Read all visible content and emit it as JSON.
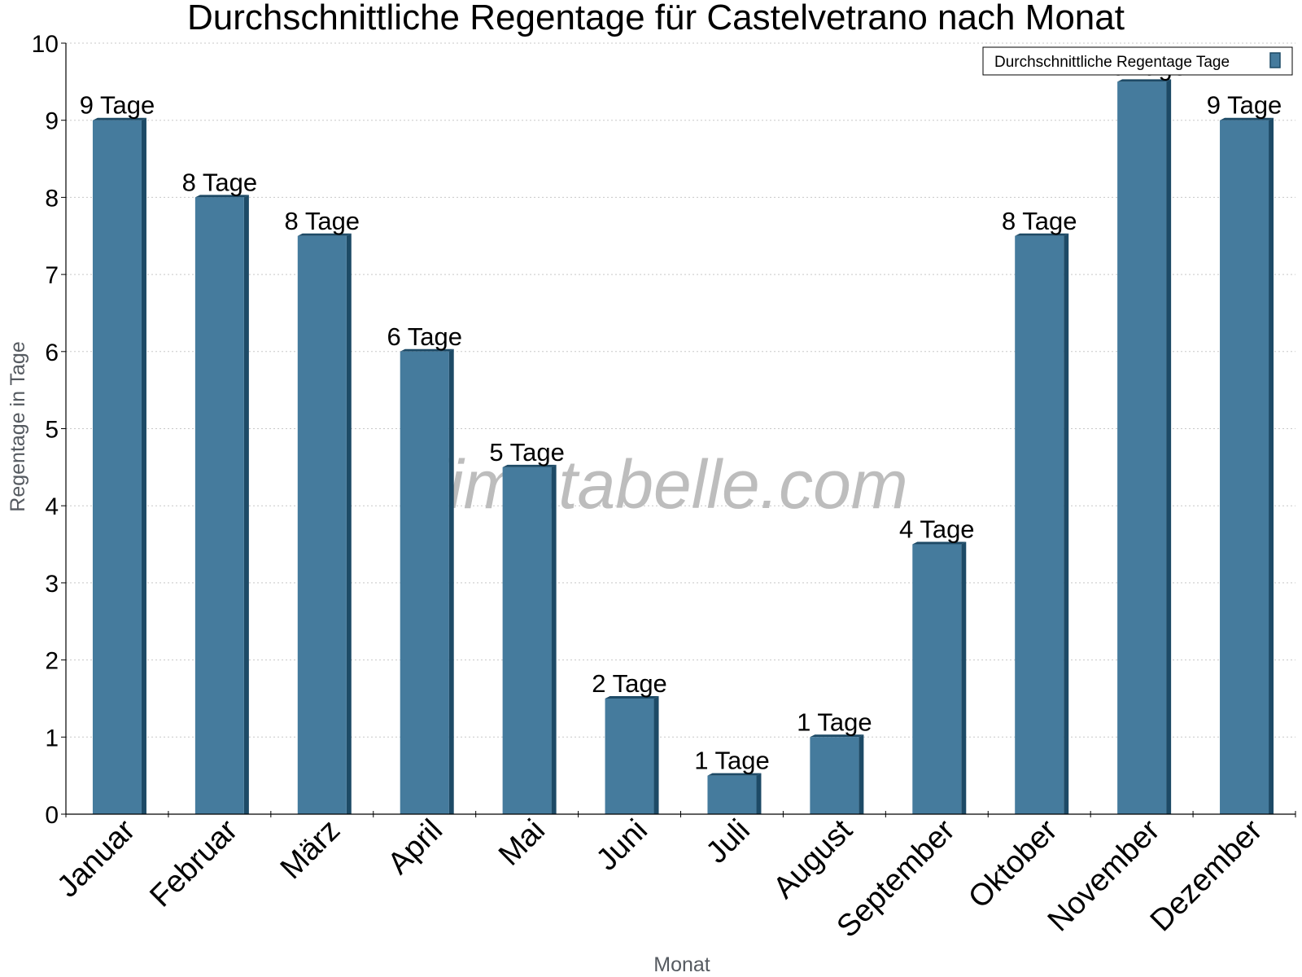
{
  "chart_data": {
    "type": "bar",
    "title": "Durchschnittliche Regentage für Castelvetrano nach Monat",
    "xlabel": "Monat",
    "ylabel": "Regentage in Tage",
    "ylim": [
      0,
      10
    ],
    "yticks": [
      "0",
      "1",
      "2",
      "3",
      "4",
      "5",
      "6",
      "7",
      "8",
      "9",
      "10"
    ],
    "grid": true,
    "legend": {
      "position": "top-right",
      "entries": [
        "Durchschnittliche Regentage Tage"
      ]
    },
    "categories": [
      "Januar",
      "Februar",
      "März",
      "April",
      "Mai",
      "Juni",
      "Juli",
      "August",
      "September",
      "Oktober",
      "November",
      "Dezember"
    ],
    "series": [
      {
        "name": "Durchschnittliche Regentage Tage",
        "color": "#457b9d",
        "values": [
          9,
          8,
          7.5,
          6,
          4.5,
          1.5,
          0.5,
          1,
          3.5,
          7.5,
          9.5,
          9
        ],
        "labels": [
          "9 Tage",
          "8 Tage",
          "8 Tage",
          "6 Tage",
          "5 Tage",
          "2 Tage",
          "1 Tage",
          "1 Tage",
          "4 Tage",
          "8 Tage",
          "10 Tage",
          "9 Tage"
        ]
      }
    ],
    "watermark": "klimatabelle.com"
  }
}
